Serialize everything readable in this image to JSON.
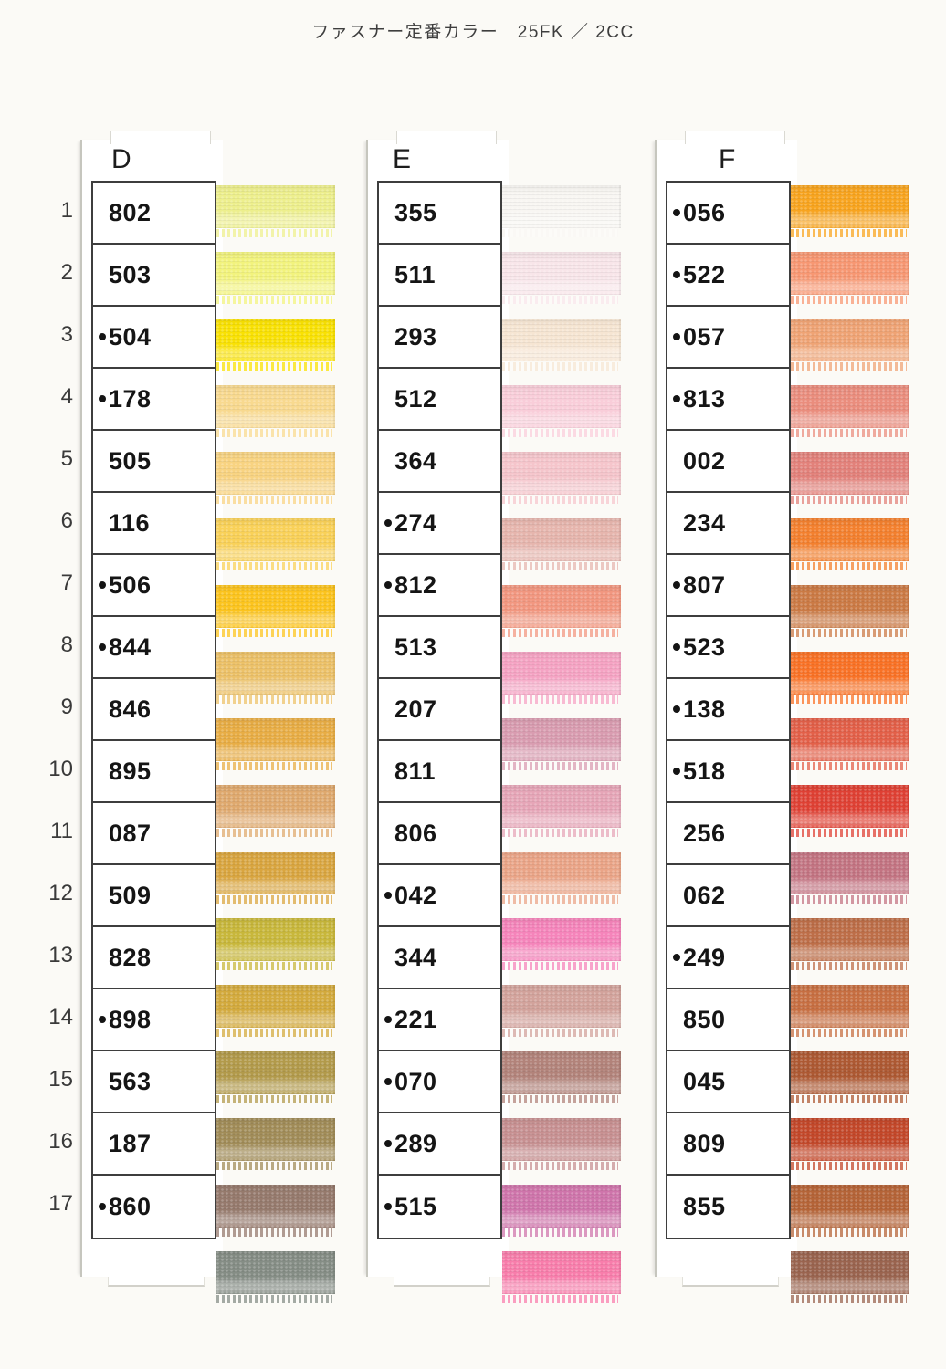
{
  "title": "ファスナー定番カラー　25FK ／ 2CC",
  "row_numbers": [
    "1",
    "2",
    "3",
    "4",
    "5",
    "6",
    "7",
    "8",
    "9",
    "10",
    "11",
    "12",
    "13",
    "14",
    "15",
    "16",
    "17"
  ],
  "columns": [
    {
      "label": "D",
      "swatches": [
        {
          "code": "802",
          "dot": false,
          "color": "#edef8d"
        },
        {
          "code": "503",
          "dot": false,
          "color": "#f2f37d"
        },
        {
          "code": "504",
          "dot": true,
          "color": "#f9e103"
        },
        {
          "code": "178",
          "dot": true,
          "color": "#f8d98f"
        },
        {
          "code": "505",
          "dot": false,
          "color": "#f8d381"
        },
        {
          "code": "116",
          "dot": false,
          "color": "#f9d158"
        },
        {
          "code": "506",
          "dot": true,
          "color": "#fcc41e"
        },
        {
          "code": "844",
          "dot": true,
          "color": "#ecc168"
        },
        {
          "code": "846",
          "dot": false,
          "color": "#e8ad45"
        },
        {
          "code": "895",
          "dot": false,
          "color": "#dfa96e"
        },
        {
          "code": "087",
          "dot": false,
          "color": "#d9a53f"
        },
        {
          "code": "509",
          "dot": false,
          "color": "#c8b73b"
        },
        {
          "code": "828",
          "dot": false,
          "color": "#d3aa3d"
        },
        {
          "code": "898",
          "dot": true,
          "color": "#b29a4b"
        },
        {
          "code": "563",
          "dot": false,
          "color": "#a18c58"
        },
        {
          "code": "187",
          "dot": false,
          "color": "#967a6d"
        },
        {
          "code": "860",
          "dot": true,
          "color": "#858d85"
        }
      ]
    },
    {
      "label": "E",
      "swatches": [
        {
          "code": "355",
          "dot": false,
          "color": "#f8f6f2"
        },
        {
          "code": "511",
          "dot": false,
          "color": "#f8e5e9"
        },
        {
          "code": "293",
          "dot": false,
          "color": "#f6e5d2"
        },
        {
          "code": "512",
          "dot": false,
          "color": "#f9cdd9"
        },
        {
          "code": "364",
          "dot": false,
          "color": "#f5c5cb"
        },
        {
          "code": "274",
          "dot": true,
          "color": "#e6b5ad"
        },
        {
          "code": "812",
          "dot": true,
          "color": "#f29780"
        },
        {
          "code": "513",
          "dot": false,
          "color": "#f5a3c3"
        },
        {
          "code": "207",
          "dot": false,
          "color": "#d99cb0"
        },
        {
          "code": "811",
          "dot": false,
          "color": "#e6a5b7"
        },
        {
          "code": "806",
          "dot": false,
          "color": "#eaa487"
        },
        {
          "code": "042",
          "dot": true,
          "color": "#f584ba"
        },
        {
          "code": "344",
          "dot": false,
          "color": "#d2a29b"
        },
        {
          "code": "221",
          "dot": true,
          "color": "#b2837a"
        },
        {
          "code": "070",
          "dot": true,
          "color": "#c79091"
        },
        {
          "code": "289",
          "dot": true,
          "color": "#cf75ab"
        },
        {
          "code": "515",
          "dot": true,
          "color": "#f87dab"
        }
      ]
    },
    {
      "label": "F",
      "swatches": [
        {
          "code": "056",
          "dot": true,
          "color": "#f8a41f"
        },
        {
          "code": "522",
          "dot": true,
          "color": "#f79772"
        },
        {
          "code": "057",
          "dot": true,
          "color": "#efa374"
        },
        {
          "code": "813",
          "dot": true,
          "color": "#ea8d7d"
        },
        {
          "code": "002",
          "dot": false,
          "color": "#e2817a"
        },
        {
          "code": "234",
          "dot": false,
          "color": "#f3802e"
        },
        {
          "code": "807",
          "dot": true,
          "color": "#cb7a45"
        },
        {
          "code": "523",
          "dot": true,
          "color": "#f97226"
        },
        {
          "code": "138",
          "dot": true,
          "color": "#e36049"
        },
        {
          "code": "518",
          "dot": true,
          "color": "#df4134"
        },
        {
          "code": "256",
          "dot": false,
          "color": "#c37482"
        },
        {
          "code": "062",
          "dot": false,
          "color": "#bd6e48"
        },
        {
          "code": "249",
          "dot": true,
          "color": "#c76f42"
        },
        {
          "code": "850",
          "dot": false,
          "color": "#ad5933"
        },
        {
          "code": "045",
          "dot": false,
          "color": "#c3482a"
        },
        {
          "code": "809",
          "dot": false,
          "color": "#b56438"
        },
        {
          "code": "855",
          "dot": false,
          "color": "#9a644f"
        }
      ]
    }
  ]
}
